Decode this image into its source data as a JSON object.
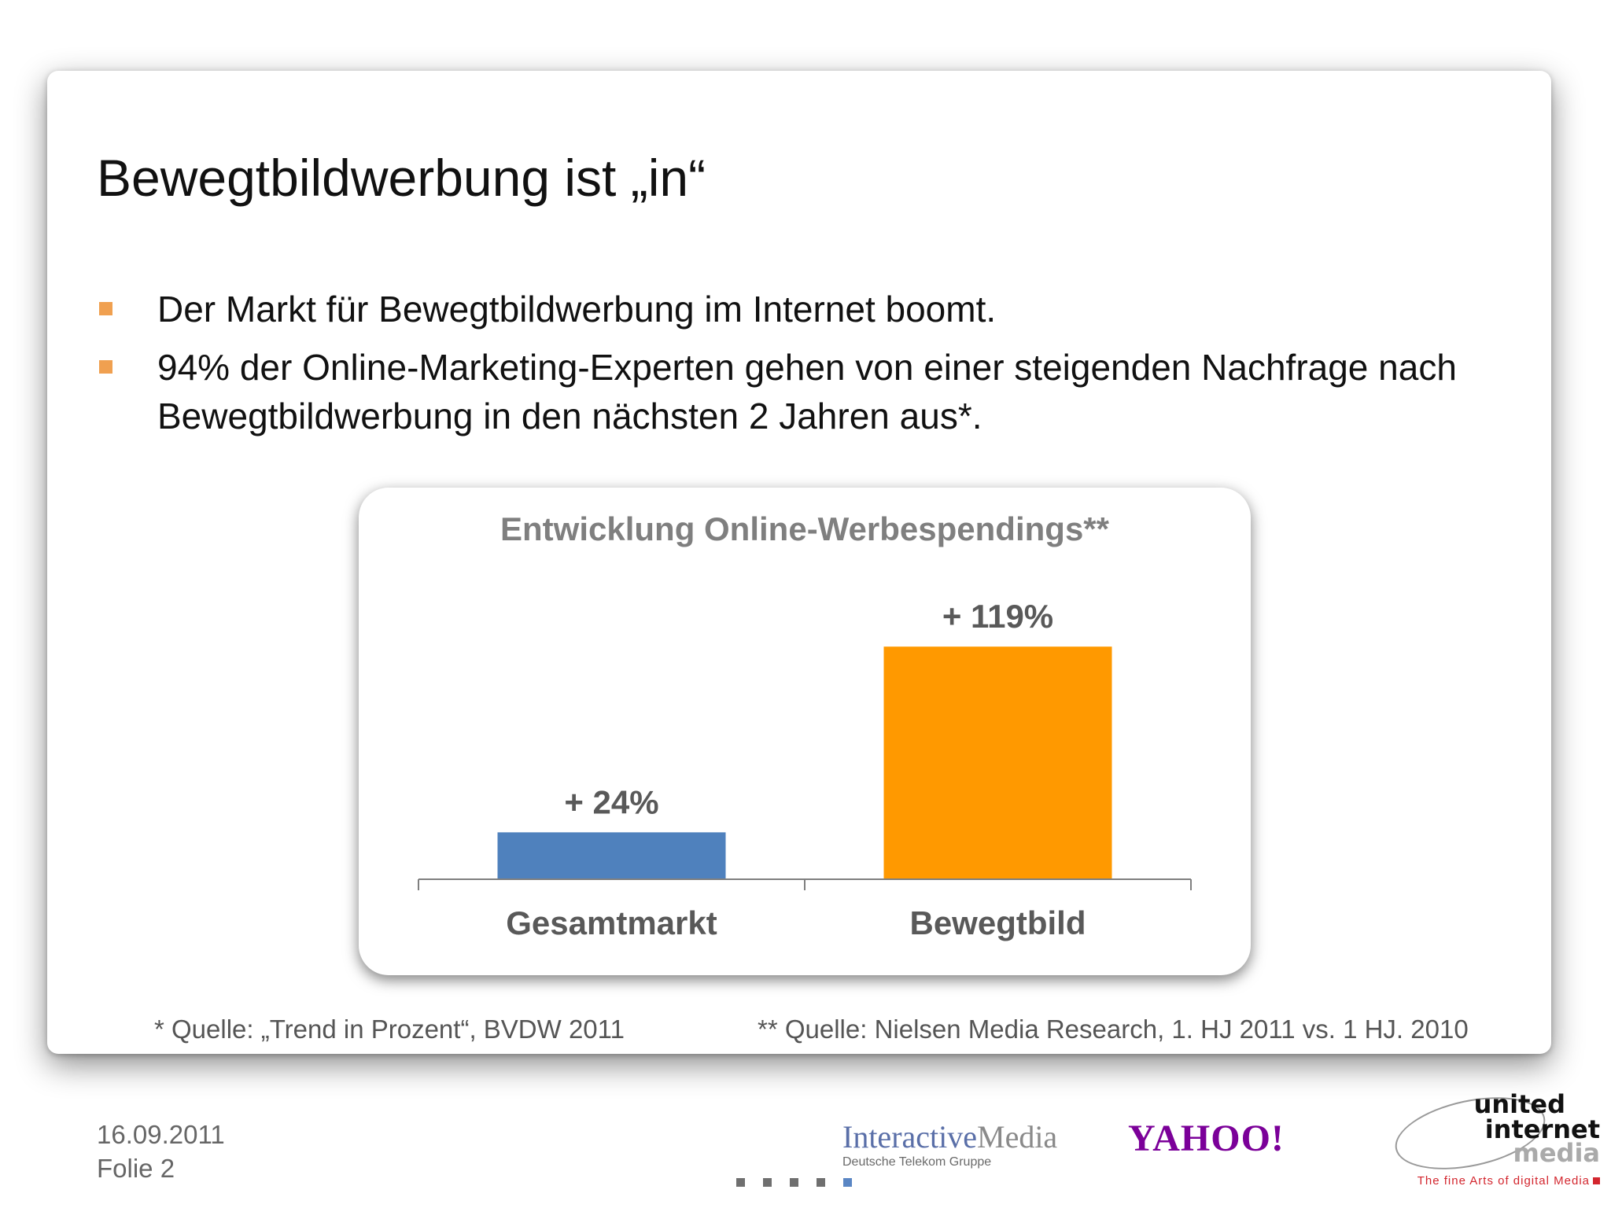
{
  "slide": {
    "title": "Bewegtbildwerbung ist „in“",
    "bullets": [
      "Der Markt für Bewegtbildwerbung im Internet boomt.",
      "94% der Online-Marketing-Experten gehen von einer steigenden Nachfrage nach Bewegtbildwerbung in den nächsten 2 Jahren aus*."
    ],
    "bullet_color": "#f0a050"
  },
  "chart_data": {
    "type": "bar",
    "title": "Entwicklung Online-Werbespendings**",
    "categories": [
      "Gesamtmarkt",
      "Bewegtbild"
    ],
    "values": [
      24,
      119
    ],
    "value_labels": [
      "+ 24%",
      "+ 119%"
    ],
    "colors": [
      "#4f81bd",
      "#ff9900"
    ],
    "ylim": [
      0,
      140
    ],
    "grid": false,
    "legend": "none"
  },
  "footnotes": {
    "source1": "* Quelle: „Trend in Prozent“, BVDW 2011",
    "source2": "** Quelle: Nielsen Media Research, 1. HJ 2011 vs. 1 HJ. 2010"
  },
  "footer": {
    "date": "16.09.2011",
    "slide_label": "Folie 2",
    "logo_interactive_media": {
      "part1": "Interactive",
      "part2": "Media",
      "sub": "Deutsche Telekom Gruppe"
    },
    "logo_yahoo": "YAHOO!",
    "logo_uim": {
      "line1": "united",
      "line2": "internet",
      "line3": "media",
      "tagline": "The fine Arts of digital Media"
    },
    "nav_dots": 5,
    "active_dot": 4
  }
}
